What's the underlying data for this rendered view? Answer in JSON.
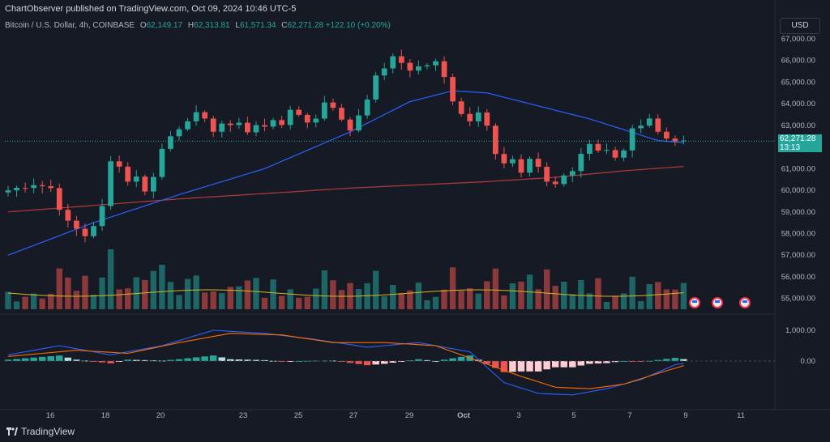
{
  "header": {
    "published": "ChartObserver published on TradingView.com, Oct 09, 2024 10:46 UTC-5"
  },
  "legend": {
    "symbol": "Bitcoin / U.S. Dollar, 4h, COINBASE",
    "open_key": "O",
    "open": "62,149.17",
    "high_key": "H",
    "high": "62,313.81",
    "low_key": "L",
    "low": "61,571.34",
    "close_key": "C",
    "close": "62,271.28",
    "change": "+122.10 (+0.20%)"
  },
  "currency_button": "USD",
  "price_tag": {
    "price": "62,271.28",
    "countdown": "13:13"
  },
  "branding": "TradingView",
  "colors": {
    "background": "#161a25",
    "up": "#26a69a",
    "down": "#ef5350",
    "ma_fast": "#2962ff",
    "ma_slow": "#b33a3a",
    "volume_ma": "#d6b81f",
    "macd_line": "#2962ff",
    "signal_line": "#ff6d00"
  },
  "chart_data": {
    "type": "candlestick",
    "title": "Bitcoin / U.S. Dollar, 4h, COINBASE",
    "price_axis_ticks": [
      "67,000.00",
      "66,000.00",
      "65,000.00",
      "64,000.00",
      "63,000.00",
      "62,000.00",
      "61,000.00",
      "60,000.00",
      "59,000.00",
      "58,000.00",
      "57,000.00",
      "56,000.00",
      "55,000.00"
    ],
    "macd_axis_ticks": [
      "1,000.00",
      "0.00"
    ],
    "time_axis_ticks": [
      "16",
      "18",
      "20",
      "23",
      "25",
      "27",
      "29",
      "Oct",
      "3",
      "5",
      "7",
      "9",
      "11"
    ],
    "price_range": [
      54500,
      67300
    ],
    "close_path": [
      [
        0,
        60000
      ],
      [
        3,
        60300
      ],
      [
        5,
        60100
      ],
      [
        6,
        59200
      ],
      [
        7,
        58500
      ],
      [
        8,
        58200
      ],
      [
        9,
        57900
      ],
      [
        10,
        58400
      ],
      [
        11,
        59200
      ],
      [
        12,
        61300
      ],
      [
        13,
        61200
      ],
      [
        14,
        60400
      ],
      [
        15,
        60700
      ],
      [
        16,
        59900
      ],
      [
        17,
        60700
      ],
      [
        18,
        61900
      ],
      [
        19,
        62500
      ],
      [
        20,
        62900
      ],
      [
        21,
        63300
      ],
      [
        22,
        63500
      ],
      [
        23,
        63200
      ],
      [
        24,
        62800
      ],
      [
        25,
        63100
      ],
      [
        26,
        62900
      ],
      [
        27,
        63200
      ],
      [
        28,
        62700
      ],
      [
        29,
        63000
      ],
      [
        30,
        62900
      ],
      [
        31,
        63300
      ],
      [
        32,
        63100
      ],
      [
        33,
        63600
      ],
      [
        34,
        63500
      ],
      [
        35,
        63200
      ],
      [
        36,
        63300
      ],
      [
        37,
        64100
      ],
      [
        38,
        63900
      ],
      [
        39,
        63200
      ],
      [
        40,
        62800
      ],
      [
        41,
        63500
      ],
      [
        42,
        64300
      ],
      [
        43,
        65200
      ],
      [
        44,
        65700
      ],
      [
        45,
        66100
      ],
      [
        46,
        65900
      ],
      [
        47,
        65600
      ],
      [
        48,
        65700
      ],
      [
        49,
        65800
      ],
      [
        50,
        65900
      ],
      [
        51,
        65200
      ],
      [
        52,
        64200
      ],
      [
        53,
        63600
      ],
      [
        54,
        63200
      ],
      [
        55,
        63700
      ],
      [
        56,
        63100
      ],
      [
        57,
        61700
      ],
      [
        58,
        61200
      ],
      [
        59,
        61400
      ],
      [
        60,
        60700
      ],
      [
        61,
        61500
      ],
      [
        62,
        61100
      ],
      [
        63,
        60400
      ],
      [
        64,
        60300
      ],
      [
        65,
        60600
      ],
      [
        66,
        60900
      ],
      [
        67,
        61700
      ],
      [
        68,
        62200
      ],
      [
        69,
        61900
      ],
      [
        70,
        61800
      ],
      [
        71,
        61600
      ],
      [
        72,
        61900
      ],
      [
        73,
        62800
      ],
      [
        74,
        62900
      ],
      [
        75,
        63200
      ],
      [
        76,
        62600
      ],
      [
        77,
        62300
      ],
      [
        78,
        62200
      ],
      [
        79,
        62271
      ]
    ],
    "ma_fast_path": [
      [
        0,
        57000
      ],
      [
        10,
        58500
      ],
      [
        20,
        59800
      ],
      [
        30,
        61000
      ],
      [
        40,
        62700
      ],
      [
        47,
        64100
      ],
      [
        52,
        64600
      ],
      [
        56,
        64500
      ],
      [
        62,
        63900
      ],
      [
        68,
        63300
      ],
      [
        72,
        62800
      ],
      [
        76,
        62300
      ],
      [
        79,
        62200
      ]
    ],
    "ma_slow_path": [
      [
        0,
        59000
      ],
      [
        20,
        59600
      ],
      [
        40,
        60100
      ],
      [
        56,
        60400
      ],
      [
        64,
        60600
      ],
      [
        72,
        60900
      ],
      [
        79,
        61100
      ]
    ],
    "macd_line": [
      [
        0,
        200
      ],
      [
        6,
        500
      ],
      [
        12,
        200
      ],
      [
        18,
        500
      ],
      [
        24,
        1000
      ],
      [
        30,
        900
      ],
      [
        36,
        700
      ],
      [
        42,
        450
      ],
      [
        48,
        600
      ],
      [
        54,
        300
      ],
      [
        58,
        -700
      ],
      [
        62,
        -1050
      ],
      [
        66,
        -1100
      ],
      [
        70,
        -900
      ],
      [
        74,
        -600
      ],
      [
        78,
        -120
      ],
      [
        79,
        -80
      ]
    ],
    "signal_line": [
      [
        0,
        150
      ],
      [
        8,
        350
      ],
      [
        14,
        250
      ],
      [
        20,
        600
      ],
      [
        26,
        900
      ],
      [
        32,
        850
      ],
      [
        38,
        600
      ],
      [
        44,
        600
      ],
      [
        50,
        500
      ],
      [
        56,
        -100
      ],
      [
        60,
        -500
      ],
      [
        64,
        -850
      ],
      [
        68,
        -900
      ],
      [
        72,
        -750
      ],
      [
        76,
        -400
      ],
      [
        79,
        -150
      ]
    ]
  }
}
